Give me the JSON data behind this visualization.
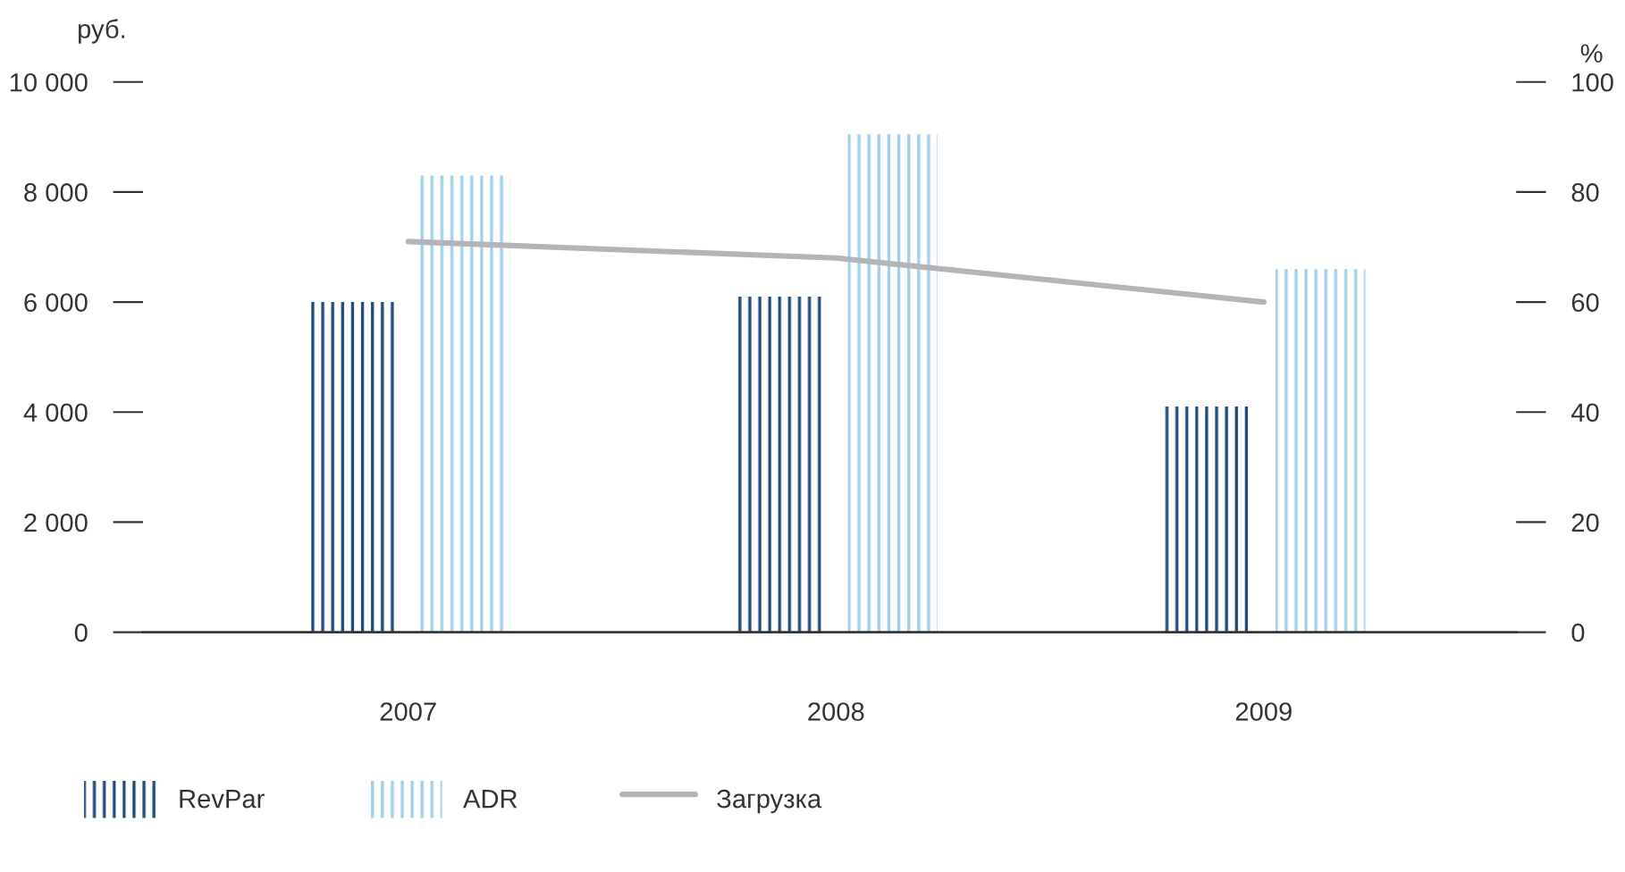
{
  "chart_data": {
    "type": "bar",
    "categories": [
      "2007",
      "2008",
      "2009"
    ],
    "ylabel": "руб.",
    "y2label": "%",
    "ylim": [
      0,
      10000
    ],
    "yticks": [
      {
        "value": 0,
        "label": "0"
      },
      {
        "value": 2000,
        "label": "2 000"
      },
      {
        "value": 4000,
        "label": "4 000"
      },
      {
        "value": 6000,
        "label": "6 000"
      },
      {
        "value": 8000,
        "label": "8 000"
      },
      {
        "value": 10000,
        "label": "10 000"
      }
    ],
    "y2lim": [
      0,
      100
    ],
    "y2ticks": [
      0,
      20,
      40,
      60,
      80,
      100
    ],
    "grid": false,
    "legend": "bottom left",
    "series": [
      {
        "name": "RevPar",
        "color": "#1f4a7c",
        "values": [
          6000,
          6100,
          4100
        ]
      },
      {
        "name": "ADR",
        "color": "#9fd0ea",
        "values": [
          8300,
          9050,
          6600
        ]
      },
      {
        "name": "Загрузка",
        "type": "line",
        "axis": "y2",
        "color": "#b4b4b8",
        "values": [
          71,
          68,
          60
        ]
      }
    ]
  }
}
